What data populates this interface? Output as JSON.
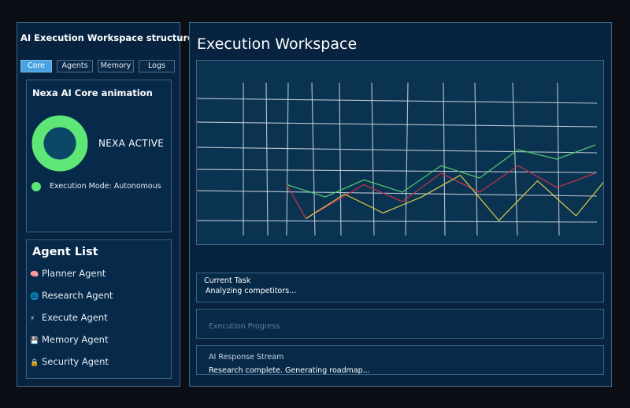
{
  "sidebar": {
    "title": "AI Execution Workspace structure",
    "tabs": [
      {
        "label": "Core",
        "active": true
      },
      {
        "label": "Agents",
        "active": false
      },
      {
        "label": "Memory",
        "active": false
      },
      {
        "label": "Logs",
        "active": false
      }
    ],
    "core": {
      "title": "Nexa AI Core animation",
      "status": "NEXA ACTIVE",
      "mode": "Execution Mode: Autonomous",
      "ring_color": "#5ee676",
      "ring_center_color": "#0b4868"
    },
    "agents": {
      "title": "Agent List",
      "items": [
        {
          "icon": "brain-icon",
          "glyph": "🧠",
          "label": "Planner Agent"
        },
        {
          "icon": "globe-icon",
          "glyph": "🌐",
          "label": "Research Agent"
        },
        {
          "icon": "lightning-icon",
          "glyph": "⚡",
          "label": "Execute Agent"
        },
        {
          "icon": "floppy-disk-icon",
          "glyph": "💾",
          "label": "Memory Agent"
        },
        {
          "icon": "lock-icon",
          "glyph": "🔒",
          "label": "Security Agent"
        }
      ]
    }
  },
  "workspace": {
    "title": "Execution Workspace",
    "current_task": {
      "label": "Current Task",
      "value": "Analyzing competitors..."
    },
    "progress": {
      "label": "Execution Progress"
    },
    "stream": {
      "label": "AI Response Stream",
      "value": "Research complete.  Generating roadmap..."
    }
  },
  "chart_data": {
    "type": "line",
    "grid": true,
    "colors": {
      "green": "#4fc36a",
      "red": "#b8324f",
      "yellow": "#c9c24d",
      "grid": "#d8dde4"
    },
    "series": [
      {
        "color": "green",
        "values": [
          [
            0,
            38
          ],
          [
            1,
            25
          ],
          [
            2,
            43
          ],
          [
            3,
            30
          ],
          [
            4,
            58
          ],
          [
            5,
            45
          ],
          [
            6,
            75
          ],
          [
            7,
            65
          ],
          [
            8,
            80
          ]
        ]
      },
      {
        "color": "red",
        "values": [
          [
            0,
            38
          ],
          [
            0.5,
            2
          ],
          [
            2,
            38
          ],
          [
            3,
            20
          ],
          [
            4,
            50
          ],
          [
            5,
            30
          ],
          [
            6,
            58
          ],
          [
            7,
            35
          ],
          [
            8,
            50
          ]
        ]
      },
      {
        "color": "yellow",
        "values": [
          [
            0.5,
            2
          ],
          [
            1.5,
            28
          ],
          [
            2.5,
            8
          ],
          [
            3.5,
            25
          ],
          [
            4.5,
            48
          ],
          [
            5.5,
            0
          ],
          [
            6.5,
            42
          ],
          [
            7.5,
            5
          ],
          [
            8.5,
            55
          ]
        ]
      }
    ]
  }
}
